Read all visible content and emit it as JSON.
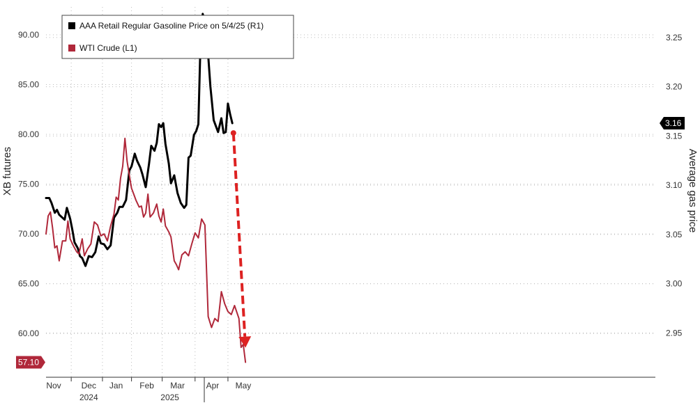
{
  "chart_data": {
    "type": "line",
    "title": "",
    "legend": {
      "placement": "top-left",
      "entries": [
        {
          "label": "AAA Retail Regular Gasoline Price on 5/4/25 (R1)",
          "color": "#000000"
        },
        {
          "label": "WTI Crude (L1)",
          "color": "#b0283a"
        }
      ]
    },
    "left_axis": {
      "label": "XB futures",
      "ticks": [
        "90.00",
        "85.00",
        "80.00",
        "75.00",
        "70.00",
        "65.00",
        "60.00"
      ],
      "range": [
        55.6,
        92.8
      ]
    },
    "right_axis": {
      "label": "Average gas price",
      "ticks": [
        "3.25",
        "3.20",
        "3.15",
        "3.10",
        "3.05",
        "3.00",
        "2.95"
      ],
      "range": [
        2.905,
        3.281
      ]
    },
    "x_axis": {
      "range": [
        "2023-10-30",
        "2025-05-08"
      ],
      "month_labels": [
        {
          "label": "Nov",
          "date": "2023-11-06"
        },
        {
          "label": "Dec",
          "date": "2023-12-08"
        },
        {
          "label": "Jan",
          "date": "2024-01-02"
        },
        {
          "label": "Feb",
          "date": "2024-01-30"
        },
        {
          "label": "Mar",
          "date": "2024-02-27"
        },
        {
          "label": "Apr",
          "date": "2024-03-30"
        },
        {
          "label": "May",
          "date": "2024-04-27"
        }
      ],
      "year_labels": [
        {
          "label": "2024",
          "date": "2023-12-08"
        },
        {
          "label": "2025",
          "date": "2024-02-20"
        }
      ]
    },
    "grid": true,
    "last_value_badges": [
      {
        "series": "gasoline",
        "text": "3.16",
        "color": "#000000"
      },
      {
        "series": "wti",
        "text": "57.10",
        "color": "#b0283a"
      }
    ],
    "annotation": {
      "type": "dashed-arrow",
      "color": "#dd2222",
      "from": [
        "2024-04-18",
        3.153
      ],
      "to": [
        "2024-04-29",
        2.935
      ]
    },
    "series": [
      {
        "key": "gasoline",
        "axis": "right",
        "color": "#000000",
        "points": [
          [
            "2023-10-30",
            3.087
          ],
          [
            "2023-11-02",
            3.087
          ],
          [
            "2023-11-04",
            3.082
          ],
          [
            "2023-11-07",
            3.072
          ],
          [
            "2023-11-09",
            3.075
          ],
          [
            "2023-11-11",
            3.07
          ],
          [
            "2023-11-14",
            3.067
          ],
          [
            "2023-11-16",
            3.065
          ],
          [
            "2023-11-18",
            3.077
          ],
          [
            "2023-11-21",
            3.066
          ],
          [
            "2023-11-23",
            3.055
          ],
          [
            "2023-11-25",
            3.042
          ],
          [
            "2023-11-28",
            3.036
          ],
          [
            "2023-11-30",
            3.028
          ],
          [
            "2023-12-02",
            3.026
          ],
          [
            "2023-12-05",
            3.018
          ],
          [
            "2023-12-08",
            3.028
          ],
          [
            "2023-12-11",
            3.027
          ],
          [
            "2023-12-14",
            3.032
          ],
          [
            "2023-12-17",
            3.048
          ],
          [
            "2023-12-19",
            3.041
          ],
          [
            "2023-12-22",
            3.04
          ],
          [
            "2023-12-25",
            3.035
          ],
          [
            "2023-12-28",
            3.039
          ],
          [
            "2023-12-31",
            3.067
          ],
          [
            "2024-01-03",
            3.072
          ],
          [
            "2024-01-05",
            3.078
          ],
          [
            "2024-01-08",
            3.078
          ],
          [
            "2024-01-11",
            3.085
          ],
          [
            "2024-01-14",
            3.115
          ],
          [
            "2024-01-16",
            3.119
          ],
          [
            "2024-01-19",
            3.132
          ],
          [
            "2024-01-21",
            3.125
          ],
          [
            "2024-01-24",
            3.118
          ],
          [
            "2024-01-26",
            3.111
          ],
          [
            "2024-01-29",
            3.098
          ],
          [
            "2024-02-01",
            3.122
          ],
          [
            "2024-02-03",
            3.14
          ],
          [
            "2024-02-06",
            3.135
          ],
          [
            "2024-02-08",
            3.143
          ],
          [
            "2024-02-10",
            3.162
          ],
          [
            "2024-02-12",
            3.159
          ],
          [
            "2024-02-14",
            3.163
          ],
          [
            "2024-02-16",
            3.142
          ],
          [
            "2024-02-19",
            3.122
          ],
          [
            "2024-02-21",
            3.102
          ],
          [
            "2024-02-24",
            3.11
          ],
          [
            "2024-02-27",
            3.092
          ],
          [
            "2024-03-01",
            3.082
          ],
          [
            "2024-03-04",
            3.077
          ],
          [
            "2024-03-06",
            3.08
          ],
          [
            "2024-03-08",
            3.128
          ],
          [
            "2024-03-10",
            3.13
          ],
          [
            "2024-03-13",
            3.151
          ],
          [
            "2024-03-15",
            3.155
          ],
          [
            "2024-03-17",
            3.162
          ],
          [
            "2024-03-19",
            3.245
          ],
          [
            "2024-03-21",
            3.274
          ],
          [
            "2024-03-23",
            3.264
          ],
          [
            "2024-03-26",
            3.232
          ],
          [
            "2024-03-28",
            3.2
          ],
          [
            "2024-03-31",
            3.166
          ],
          [
            "2024-04-04",
            3.154
          ],
          [
            "2024-04-07",
            3.168
          ],
          [
            "2024-04-09",
            3.153
          ],
          [
            "2024-04-11",
            3.154
          ],
          [
            "2024-04-13",
            3.183
          ],
          [
            "2024-04-15",
            3.172
          ],
          [
            "2024-04-17",
            3.163
          ]
        ]
      },
      {
        "key": "wti",
        "axis": "left",
        "color": "#b0283a",
        "points": [
          [
            "2023-10-30",
            70.0
          ],
          [
            "2023-11-01",
            71.8
          ],
          [
            "2023-11-03",
            72.2
          ],
          [
            "2023-11-05",
            70.6
          ],
          [
            "2023-11-07",
            68.6
          ],
          [
            "2023-11-09",
            68.8
          ],
          [
            "2023-11-11",
            67.3
          ],
          [
            "2023-11-14",
            69.3
          ],
          [
            "2023-11-17",
            69.3
          ],
          [
            "2023-11-19",
            71.3
          ],
          [
            "2023-11-21",
            69.5
          ],
          [
            "2023-11-24",
            68.8
          ],
          [
            "2023-11-27",
            68.2
          ],
          [
            "2023-11-29",
            68.0
          ],
          [
            "2023-12-02",
            69.5
          ],
          [
            "2023-12-04",
            67.8
          ],
          [
            "2023-12-07",
            68.5
          ],
          [
            "2023-12-10",
            69.0
          ],
          [
            "2023-12-13",
            71.2
          ],
          [
            "2023-12-16",
            70.9
          ],
          [
            "2023-12-19",
            69.8
          ],
          [
            "2023-12-22",
            70.0
          ],
          [
            "2023-12-25",
            69.3
          ],
          [
            "2023-12-28",
            70.8
          ],
          [
            "2023-12-31",
            72.0
          ],
          [
            "2024-01-02",
            73.7
          ],
          [
            "2024-01-04",
            73.4
          ],
          [
            "2024-01-06",
            75.6
          ],
          [
            "2024-01-08",
            76.8
          ],
          [
            "2024-01-10",
            79.6
          ],
          [
            "2024-01-12",
            77.3
          ],
          [
            "2024-01-14",
            75.9
          ],
          [
            "2024-01-16",
            74.6
          ],
          [
            "2024-01-18",
            74.0
          ],
          [
            "2024-01-20",
            73.4
          ],
          [
            "2024-01-23",
            72.7
          ],
          [
            "2024-01-25",
            72.8
          ],
          [
            "2024-01-27",
            71.7
          ],
          [
            "2024-01-29",
            72.1
          ],
          [
            "2024-01-31",
            74.0
          ],
          [
            "2024-02-02",
            71.7
          ],
          [
            "2024-02-05",
            72.1
          ],
          [
            "2024-02-08",
            73.0
          ],
          [
            "2024-02-10",
            71.8
          ],
          [
            "2024-02-12",
            71.2
          ],
          [
            "2024-02-14",
            72.5
          ],
          [
            "2024-02-16",
            70.8
          ],
          [
            "2024-02-19",
            70.2
          ],
          [
            "2024-02-21",
            69.7
          ],
          [
            "2024-02-24",
            67.3
          ],
          [
            "2024-02-26",
            66.9
          ],
          [
            "2024-02-28",
            66.4
          ],
          [
            "2024-03-02",
            67.9
          ],
          [
            "2024-03-05",
            68.2
          ],
          [
            "2024-03-08",
            67.8
          ],
          [
            "2024-03-11",
            69.0
          ],
          [
            "2024-03-14",
            70.1
          ],
          [
            "2024-03-17",
            69.6
          ],
          [
            "2024-03-20",
            71.5
          ],
          [
            "2024-03-23",
            70.9
          ],
          [
            "2024-03-26",
            61.7
          ],
          [
            "2024-03-29",
            60.6
          ],
          [
            "2024-04-01",
            61.5
          ],
          [
            "2024-04-04",
            61.2
          ],
          [
            "2024-04-07",
            64.2
          ],
          [
            "2024-04-10",
            63.0
          ],
          [
            "2024-04-13",
            62.2
          ],
          [
            "2024-04-16",
            61.9
          ],
          [
            "2024-04-19",
            62.8
          ],
          [
            "2024-04-23",
            61.5
          ],
          [
            "2024-04-25",
            58.6
          ],
          [
            "2024-04-27",
            58.9
          ],
          [
            "2024-04-29",
            57.1
          ]
        ]
      }
    ]
  }
}
